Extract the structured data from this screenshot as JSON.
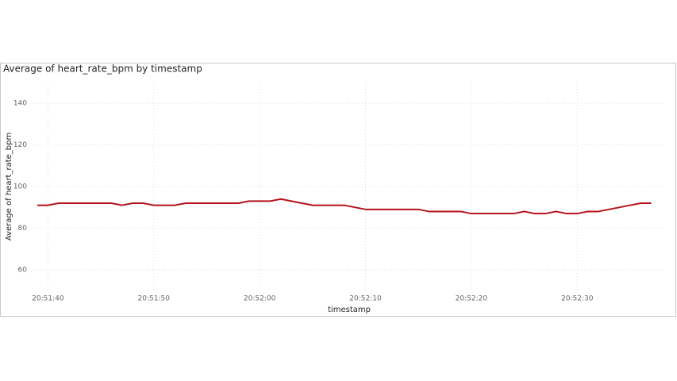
{
  "chart_data": {
    "type": "line",
    "title": "Average of heart_rate_bpm by timestamp",
    "x_label": "timestamp",
    "y_label": "Average of heart_rate_bpm",
    "x": [
      "20:51:39",
      "20:51:40",
      "20:51:41",
      "20:51:42",
      "20:51:43",
      "20:51:44",
      "20:51:45",
      "20:51:46",
      "20:51:47",
      "20:51:48",
      "20:51:49",
      "20:51:50",
      "20:51:51",
      "20:51:52",
      "20:51:53",
      "20:51:54",
      "20:51:55",
      "20:51:56",
      "20:51:57",
      "20:51:58",
      "20:51:59",
      "20:52:00",
      "20:52:01",
      "20:52:02",
      "20:52:03",
      "20:52:04",
      "20:52:05",
      "20:52:06",
      "20:52:07",
      "20:52:08",
      "20:52:09",
      "20:52:10",
      "20:52:11",
      "20:52:12",
      "20:52:13",
      "20:52:14",
      "20:52:15",
      "20:52:16",
      "20:52:17",
      "20:52:18",
      "20:52:19",
      "20:52:20",
      "20:52:21",
      "20:52:22",
      "20:52:23",
      "20:52:24",
      "20:52:25",
      "20:52:26",
      "20:52:27",
      "20:52:28",
      "20:52:29",
      "20:52:30",
      "20:52:31",
      "20:52:32",
      "20:52:33",
      "20:52:34",
      "20:52:35",
      "20:52:36",
      "20:52:37"
    ],
    "series": [
      {
        "name": "Average of heart_rate_bpm",
        "color": "#b5121b",
        "values": [
          91,
          91,
          92,
          92,
          92,
          92,
          92,
          92,
          91,
          92,
          92,
          91,
          91,
          91,
          92,
          92,
          92,
          92,
          92,
          92,
          93,
          93,
          93,
          94,
          93,
          92,
          91,
          91,
          91,
          91,
          90,
          89,
          89,
          89,
          89,
          89,
          89,
          88,
          88,
          88,
          88,
          87,
          87,
          87,
          87,
          87,
          88,
          87,
          87,
          88,
          87,
          87,
          88,
          88,
          89,
          90,
          91,
          92,
          92
        ]
      }
    ],
    "xlim": [
      "20:51:39",
      "20:52:38"
    ],
    "xticks": [
      "20:51:40",
      "20:51:50",
      "20:52:00",
      "20:52:10",
      "20:52:20",
      "20:52:30"
    ],
    "ylim": [
      50,
      150
    ],
    "yticks": [
      60,
      80,
      100,
      120,
      140
    ],
    "grid": true
  }
}
